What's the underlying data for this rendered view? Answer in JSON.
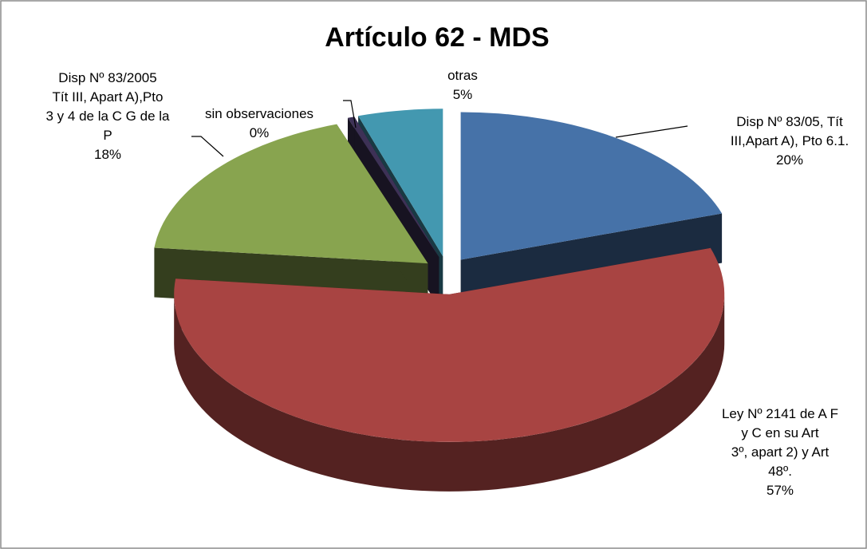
{
  "chart_data": {
    "type": "pie3d",
    "title": "Artículo  62 - MDS",
    "categories": [
      [
        "Disp Nº 83/05, Tít",
        "III,Apart A), Pto 6.1."
      ],
      [
        "Ley Nº 2141 de A F",
        "y C en su Art",
        "3º, apart 2) y Art",
        "48º."
      ],
      [
        "Disp Nº 83/2005",
        "Tít III, Apart A),Pto",
        "3 y 4 de la C G de la",
        "P"
      ],
      [
        "sin observaciones"
      ],
      [
        "otras"
      ]
    ],
    "values": [
      20,
      57,
      18,
      0.4,
      5
    ],
    "value_labels": [
      "20%",
      "57%",
      "18%",
      "0%",
      "5%"
    ],
    "colors": [
      "#4672a8",
      "#a84442",
      "#88a44f",
      "#3d3156",
      "#4398b0"
    ]
  }
}
